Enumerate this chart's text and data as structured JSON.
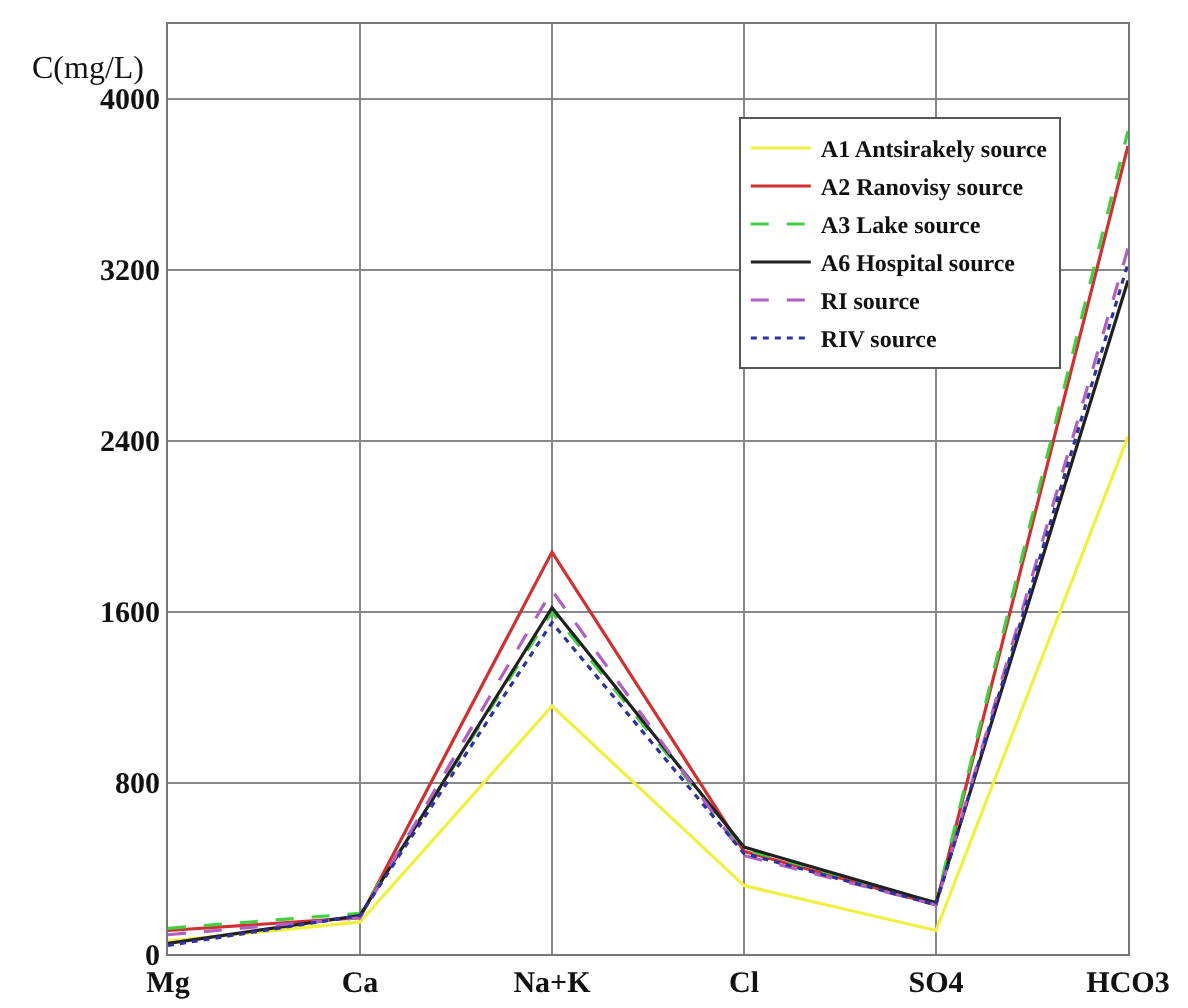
{
  "chart_data": {
    "type": "line",
    "ylabel": "C(mg/L)",
    "categories": [
      "Mg",
      "Ca",
      "Na+K",
      "Cl",
      "SO4",
      "HCO3"
    ],
    "series": [
      {
        "name": "A1 Antsirakely source",
        "color": "#f0f040",
        "line_style": "solid",
        "values": [
          60,
          150,
          1160,
          320,
          110,
          2420
        ]
      },
      {
        "name": "A2 Ranovisy source",
        "color": "#d03030",
        "line_style": "solid",
        "values": [
          110,
          170,
          1880,
          480,
          230,
          3780
        ]
      },
      {
        "name": "A3 Lake source",
        "color": "#40d040",
        "line_style": "dashed",
        "values": [
          120,
          190,
          1600,
          490,
          240,
          3850
        ]
      },
      {
        "name": "A6 Hospital source",
        "color": "#202020",
        "line_style": "solid",
        "values": [
          50,
          180,
          1620,
          500,
          240,
          3150
        ]
      },
      {
        "name": "RI source",
        "color": "#b060c0",
        "line_style": "dashed",
        "values": [
          90,
          170,
          1700,
          460,
          230,
          3300
        ]
      },
      {
        "name": "RIV source",
        "color": "#3030a0",
        "line_style": "dotted",
        "values": [
          40,
          180,
          1550,
          470,
          230,
          3230
        ]
      }
    ],
    "ylim": [
      0,
      4350
    ],
    "yticks": [
      0,
      800,
      1600,
      2400,
      3200,
      4000
    ],
    "grid": true,
    "legend": "top right",
    "marker": "none"
  }
}
